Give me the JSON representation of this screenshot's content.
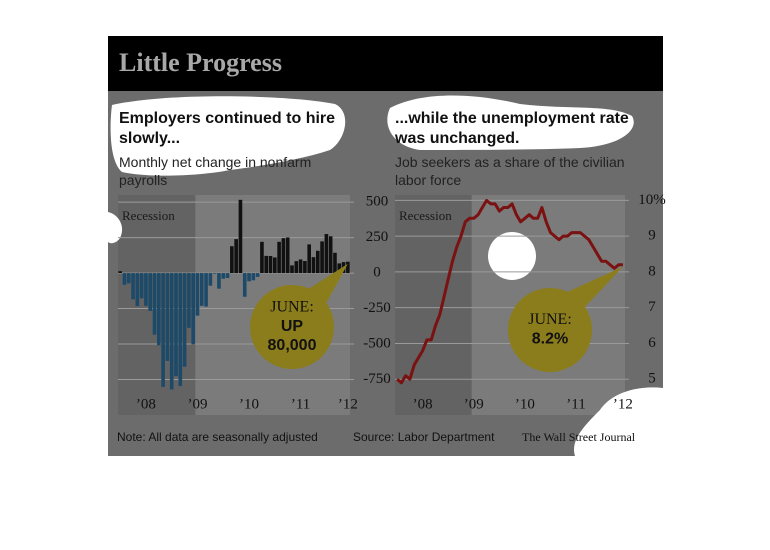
{
  "title": "Little Progress",
  "note": "Note: All data are seasonally adjusted",
  "source": "Source: Labor Department",
  "credit": "The Wall Street Journal",
  "chart_data": [
    {
      "type": "bar",
      "title": "Employers continued to hire slowly...",
      "subtitle": "Monthly net change in nonfarm payrolls",
      "categories": [
        null,
        null,
        null,
        null,
        null,
        null,
        "’08",
        null,
        null,
        null,
        null,
        null,
        null,
        null,
        null,
        null,
        null,
        null,
        "’09",
        null,
        null,
        null,
        null,
        null,
        null,
        null,
        null,
        null,
        null,
        null,
        "’10",
        null,
        null,
        null,
        null,
        null,
        null,
        null,
        null,
        null,
        null,
        null,
        "’11",
        null,
        null,
        null,
        null,
        null,
        null,
        null,
        null,
        null,
        null,
        "’12"
      ],
      "values": [
        13,
        -83,
        -72,
        -185,
        -233,
        -178,
        -231,
        -267,
        -434,
        -509,
        -802,
        -619,
        -820,
        -726,
        -796,
        -660,
        -386,
        -502,
        -300,
        -231,
        -236,
        -89,
        -5,
        -110,
        -40,
        -35,
        189,
        239,
        516,
        -167,
        -58,
        -51,
        -27,
        220,
        121,
        120,
        110,
        220,
        246,
        251,
        54,
        84,
        96,
        85,
        202,
        112,
        157,
        223,
        275,
        259,
        143,
        68,
        77,
        80
      ],
      "pos_color": "#111111",
      "neg_color": "#1d4a68",
      "ylim": [
        -1000,
        550
      ],
      "yticks": [
        500,
        250,
        0,
        -250,
        -500,
        -750
      ],
      "grid": true,
      "recession": {
        "label": "Recession",
        "from": 0,
        "to": 17
      },
      "callout": [
        "JUNE:",
        "UP",
        "80,000"
      ]
    },
    {
      "type": "line",
      "title": "...while the unemployment rate was unchanged.",
      "subtitle": "Job seekers as a share of the civilian labor force",
      "categories": [
        null,
        null,
        null,
        null,
        null,
        null,
        "’08",
        null,
        null,
        null,
        null,
        null,
        null,
        null,
        null,
        null,
        null,
        null,
        "’09",
        null,
        null,
        null,
        null,
        null,
        null,
        null,
        null,
        null,
        null,
        null,
        "’10",
        null,
        null,
        null,
        null,
        null,
        null,
        null,
        null,
        null,
        null,
        null,
        "’11",
        null,
        null,
        null,
        null,
        null,
        null,
        null,
        null,
        null,
        null,
        "’12"
      ],
      "values": [
        5.0,
        4.9,
        5.1,
        5.0,
        5.4,
        5.6,
        5.8,
        6.1,
        6.1,
        6.5,
        6.8,
        7.3,
        7.8,
        8.3,
        8.7,
        9.0,
        9.4,
        9.5,
        9.5,
        9.6,
        9.8,
        10.0,
        9.9,
        9.9,
        9.7,
        9.8,
        9.8,
        9.9,
        9.6,
        9.4,
        9.5,
        9.6,
        9.5,
        9.5,
        9.8,
        9.4,
        9.1,
        9.0,
        8.9,
        9.0,
        9.0,
        9.1,
        9.1,
        9.1,
        9.0,
        8.9,
        8.7,
        8.5,
        8.3,
        8.3,
        8.2,
        8.1,
        8.2,
        8.2
      ],
      "color": "#7a1212",
      "ylim": [
        4,
        10.15
      ],
      "yticks": [
        5,
        6,
        7,
        8,
        9,
        {
          "value": 10,
          "label": "10%"
        }
      ],
      "grid": true,
      "recession": {
        "label": "Recession",
        "from": 0,
        "to": 17
      },
      "callout": [
        "JUNE:",
        "8.2%"
      ]
    }
  ]
}
